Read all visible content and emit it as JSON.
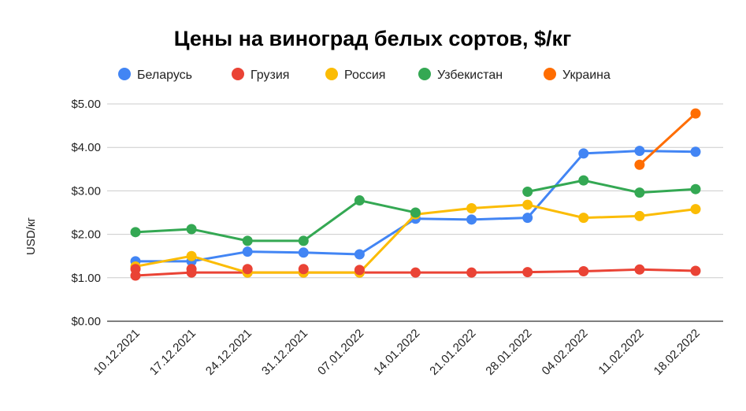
{
  "chart_data": {
    "type": "line",
    "title": "Цены на виноград белых сортов, $/кг",
    "xlabel": "",
    "ylabel": "USD/кг",
    "ylim": [
      0,
      5
    ],
    "y_ticks": [
      "$0.00",
      "$1.00",
      "$2.00",
      "$3.00",
      "$4.00",
      "$5.00"
    ],
    "grid": true,
    "legend_position": "top",
    "categories": [
      "10.12.2021",
      "17.12.2021",
      "24.12.2021",
      "31.12.2021",
      "07.01.2022",
      "14.01.2022",
      "21.01.2022",
      "28.01.2022",
      "04.02.2022",
      "11.02.2022",
      "18.02.2022"
    ],
    "series": [
      {
        "name": "Беларусь",
        "color": "#4285F4",
        "values": [
          1.38,
          1.38,
          1.6,
          1.58,
          1.54,
          2.36,
          2.34,
          2.38,
          3.86,
          3.92,
          3.9
        ]
      },
      {
        "name": "Грузия",
        "color": "#EA4335",
        "values": [
          1.05,
          1.12,
          1.12,
          1.12,
          1.12,
          1.12,
          1.12,
          1.13,
          1.15,
          1.19,
          1.16
        ]
      },
      {
        "name": "Россия",
        "color": "#FBBC04",
        "values": [
          1.26,
          1.5,
          1.12,
          1.12,
          1.12,
          2.46,
          2.6,
          2.68,
          2.38,
          2.42,
          2.58
        ]
      },
      {
        "name": "Узбекистан",
        "color": "#34A853",
        "values": [
          2.05,
          2.12,
          1.85,
          1.85,
          2.78,
          2.5,
          null,
          2.98,
          3.24,
          2.96,
          3.04
        ]
      },
      {
        "name": "Украина",
        "color": "#FF6D01",
        "values": [
          null,
          null,
          null,
          null,
          null,
          null,
          null,
          null,
          null,
          3.6,
          4.78
        ]
      }
    ],
    "extra_points": [
      {
        "series": "Грузия",
        "category": "10.12.2021",
        "value": 1.2
      },
      {
        "series": "Грузия",
        "category": "17.12.2021",
        "value": 1.2
      },
      {
        "series": "Грузия",
        "category": "24.12.2021",
        "value": 1.2
      },
      {
        "series": "Грузия",
        "category": "31.12.2021",
        "value": 1.2
      },
      {
        "series": "Грузия",
        "category": "07.01.2022",
        "value": 1.18
      }
    ]
  }
}
